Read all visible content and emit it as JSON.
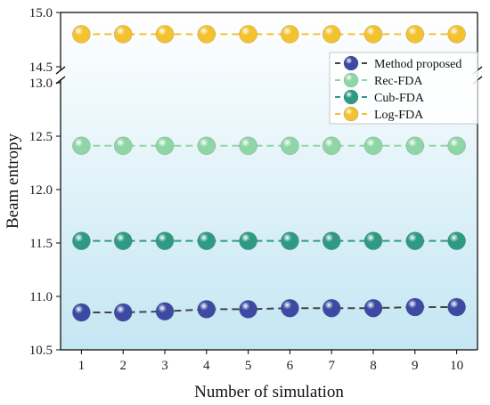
{
  "chart_data": {
    "type": "line",
    "xlabel": "Number of simulation",
    "ylabel": "Beam entropy",
    "x": [
      1,
      2,
      3,
      4,
      5,
      6,
      7,
      8,
      9,
      10
    ],
    "xticks": [
      "1",
      "2",
      "3",
      "4",
      "5",
      "6",
      "7",
      "8",
      "9",
      "10"
    ],
    "axis_break": {
      "lower_ylim": [
        10.5,
        13.0
      ],
      "upper_ylim": [
        14.5,
        15.0
      ],
      "lower_ticks": [
        "10.5",
        "11.0",
        "11.5",
        "12.0",
        "12.5",
        "13.0"
      ],
      "upper_ticks": [
        "14.5",
        "15.0"
      ]
    },
    "legend_position": "top-right",
    "marker": "sphere",
    "line_style": "dashed",
    "background": "light blue vertical gradient",
    "series": [
      {
        "name": "Method proposed",
        "color": "#3d4aa3",
        "values": [
          10.85,
          10.85,
          10.86,
          10.88,
          10.88,
          10.89,
          10.89,
          10.89,
          10.9,
          10.9
        ]
      },
      {
        "name": "Rec-FDA",
        "color": "#8fd6a6",
        "values": [
          12.41,
          12.41,
          12.41,
          12.41,
          12.41,
          12.41,
          12.41,
          12.41,
          12.41,
          12.41
        ]
      },
      {
        "name": "Cub-FDA",
        "color": "#2f9a84",
        "values": [
          11.52,
          11.52,
          11.52,
          11.52,
          11.52,
          11.52,
          11.52,
          11.52,
          11.52,
          11.52
        ]
      },
      {
        "name": "Log-FDA",
        "color": "#f4c22f",
        "values": [
          14.8,
          14.8,
          14.8,
          14.8,
          14.8,
          14.8,
          14.8,
          14.8,
          14.8,
          14.8
        ]
      }
    ]
  }
}
